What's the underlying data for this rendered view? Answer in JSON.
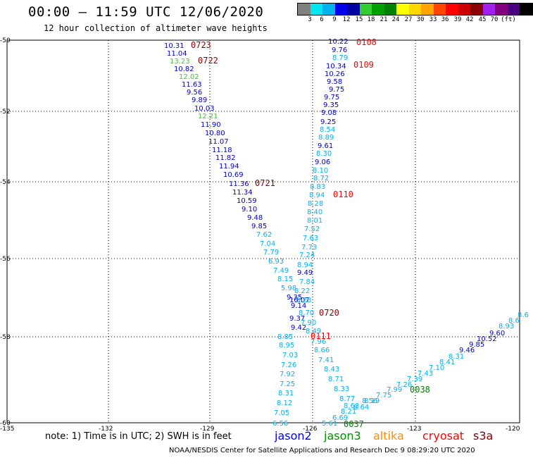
{
  "header": {
    "title": "00:00 – 11:59 UTC 12/06/2020",
    "subtitle": "12 hour collection of altimeter wave heights"
  },
  "colorbar": {
    "colors": [
      "#808080",
      "#00e5ee",
      "#00b2ee",
      "#0000ee",
      "#0000a0",
      "#32cd32",
      "#00a000",
      "#008000",
      "#ffff00",
      "#ffd700",
      "#ffa500",
      "#ff4500",
      "#ff0000",
      "#cd0000",
      "#8b0000",
      "#a020f0",
      "#800080",
      "#4b0082",
      "#000000"
    ],
    "labels": [
      "3",
      "6",
      "9",
      "12",
      "15",
      "18",
      "21",
      "24",
      "27",
      "30",
      "33",
      "36",
      "39",
      "42",
      "45",
      "70",
      "(ft)"
    ]
  },
  "axes": {
    "x_ticks": [
      "-135",
      "-132",
      "-129",
      "-126",
      "-123",
      "-120"
    ],
    "y_ticks": [
      "-50",
      "-52",
      "-54",
      "-56",
      "-58",
      "-60"
    ]
  },
  "track_labels": [
    "0723",
    "0722",
    "0721",
    "0720",
    "0108",
    "0109",
    "0110",
    "0111",
    "0038",
    "0037"
  ],
  "points": [
    {
      "v": "10.31",
      "c": "#0000cd"
    },
    {
      "v": "11.04",
      "c": "#0000cd"
    },
    {
      "v": "13.23",
      "c": "#32cd32"
    },
    {
      "v": "10.82",
      "c": "#0000cd"
    },
    {
      "v": "12.02",
      "c": "#32cd32"
    },
    {
      "v": "11.63",
      "c": "#0000cd"
    },
    {
      "v": "9.56",
      "c": "#0000cd"
    },
    {
      "v": "9.89",
      "c": "#0000cd"
    },
    {
      "v": "10.03",
      "c": "#0000cd"
    },
    {
      "v": "12.21",
      "c": "#32cd32"
    },
    {
      "v": "11.90",
      "c": "#0000cd"
    },
    {
      "v": "10.80",
      "c": "#0000cd"
    },
    {
      "v": "11.07",
      "c": "#0000cd"
    },
    {
      "v": "11.18",
      "c": "#0000cd"
    },
    {
      "v": "11.82",
      "c": "#0000cd"
    },
    {
      "v": "11.94",
      "c": "#0000cd"
    },
    {
      "v": "10.69",
      "c": "#0000cd"
    },
    {
      "v": "11.36",
      "c": "#0000cd"
    },
    {
      "v": "11.34",
      "c": "#0000cd"
    },
    {
      "v": "10.59",
      "c": "#0000cd"
    },
    {
      "v": "9.10",
      "c": "#0000cd"
    },
    {
      "v": "9.48",
      "c": "#0000cd"
    },
    {
      "v": "9.85",
      "c": "#0000cd"
    },
    {
      "v": "7.62",
      "c": "#00b2ee"
    },
    {
      "v": "7.04",
      "c": "#00b2ee"
    },
    {
      "v": "7.79",
      "c": "#00b2ee"
    },
    {
      "v": "6.93",
      "c": "#00b2ee"
    },
    {
      "v": "7.49",
      "c": "#00b2ee"
    },
    {
      "v": "8.15",
      "c": "#00b2ee"
    },
    {
      "v": "5.98",
      "c": "#00b2ee"
    },
    {
      "v": "9.35",
      "c": "#0000cd"
    },
    {
      "v": "10.07",
      "c": "#0000cd"
    },
    {
      "v": "9.14",
      "c": "#0000cd"
    },
    {
      "v": "9.37",
      "c": "#0000cd"
    },
    {
      "v": "9.42",
      "c": "#0000cd"
    },
    {
      "v": "8.85",
      "c": "#00b2ee"
    },
    {
      "v": "8.95",
      "c": "#00b2ee"
    },
    {
      "v": "7.03",
      "c": "#00b2ee"
    },
    {
      "v": "7.26",
      "c": "#00b2ee"
    },
    {
      "v": "7.92",
      "c": "#00b2ee"
    },
    {
      "v": "7.25",
      "c": "#00b2ee"
    },
    {
      "v": "8.31",
      "c": "#00b2ee"
    },
    {
      "v": "8.12",
      "c": "#00b2ee"
    },
    {
      "v": "7.05",
      "c": "#00b2ee"
    },
    {
      "v": "6.56",
      "c": "#00b2ee"
    },
    {
      "v": "10.22",
      "c": "#0000cd"
    },
    {
      "v": "9.76",
      "c": "#0000cd"
    },
    {
      "v": "8.79",
      "c": "#00b2ee"
    },
    {
      "v": "10.34",
      "c": "#0000cd"
    },
    {
      "v": "10.26",
      "c": "#0000cd"
    },
    {
      "v": "9.58",
      "c": "#0000cd"
    },
    {
      "v": "9.75",
      "c": "#0000cd"
    },
    {
      "v": "9.75",
      "c": "#0000cd"
    },
    {
      "v": "9.35",
      "c": "#0000cd"
    },
    {
      "v": "9.08",
      "c": "#0000cd"
    },
    {
      "v": "9.25",
      "c": "#0000cd"
    },
    {
      "v": "8.54",
      "c": "#00b2ee"
    },
    {
      "v": "8.89",
      "c": "#00b2ee"
    },
    {
      "v": "9.61",
      "c": "#0000cd"
    },
    {
      "v": "8.30",
      "c": "#00b2ee"
    },
    {
      "v": "9.06",
      "c": "#0000cd"
    },
    {
      "v": "8.10",
      "c": "#00b2ee"
    },
    {
      "v": "8.72",
      "c": "#00b2ee"
    },
    {
      "v": "8.83",
      "c": "#00b2ee"
    },
    {
      "v": "8.94",
      "c": "#00b2ee"
    },
    {
      "v": "8.28",
      "c": "#00b2ee"
    },
    {
      "v": "8.40",
      "c": "#00b2ee"
    },
    {
      "v": "8.01",
      "c": "#00b2ee"
    },
    {
      "v": "7.52",
      "c": "#00b2ee"
    },
    {
      "v": "7.63",
      "c": "#00b2ee"
    },
    {
      "v": "7.73",
      "c": "#00b2ee"
    },
    {
      "v": "7.24",
      "c": "#00b2ee"
    },
    {
      "v": "8.94",
      "c": "#00b2ee"
    },
    {
      "v": "9.49",
      "c": "#0000cd"
    },
    {
      "v": "7.84",
      "c": "#00b2ee"
    },
    {
      "v": "8.22",
      "c": "#00b2ee"
    },
    {
      "v": "8.28",
      "c": "#00b2ee"
    },
    {
      "v": "8.70",
      "c": "#00b2ee"
    },
    {
      "v": "7.90",
      "c": "#00b2ee"
    },
    {
      "v": "8.49",
      "c": "#00b2ee"
    },
    {
      "v": "7.96",
      "c": "#00b2ee"
    },
    {
      "v": "8.66",
      "c": "#00b2ee"
    },
    {
      "v": "7.41",
      "c": "#00b2ee"
    },
    {
      "v": "8.43",
      "c": "#00b2ee"
    },
    {
      "v": "8.71",
      "c": "#00b2ee"
    },
    {
      "v": "8.33",
      "c": "#00b2ee"
    },
    {
      "v": "8.77",
      "c": "#00b2ee"
    },
    {
      "v": "8.63",
      "c": "#00b2ee"
    },
    {
      "v": "8.21",
      "c": "#00b2ee"
    },
    {
      "v": "6.69",
      "c": "#00b2ee"
    },
    {
      "v": "5.61",
      "c": "#00b2ee"
    },
    {
      "v": "8.64",
      "c": "#00b2ee"
    },
    {
      "v": "8.56",
      "c": "#00b2ee"
    },
    {
      "v": "8.19",
      "c": "#00b2ee"
    },
    {
      "v": "7.75",
      "c": "#00b2ee"
    },
    {
      "v": "7.99",
      "c": "#00b2ee"
    },
    {
      "v": "7.26",
      "c": "#00b2ee"
    },
    {
      "v": "7.39",
      "c": "#00b2ee"
    },
    {
      "v": "7.43",
      "c": "#00b2ee"
    },
    {
      "v": "7.10",
      "c": "#00b2ee"
    },
    {
      "v": "8.41",
      "c": "#00b2ee"
    },
    {
      "v": "8.31",
      "c": "#00b2ee"
    },
    {
      "v": "9.46",
      "c": "#0000cd"
    },
    {
      "v": "9.85",
      "c": "#0000cd"
    },
    {
      "v": "10.52",
      "c": "#0000cd"
    },
    {
      "v": "9.60",
      "c": "#0000cd"
    },
    {
      "v": "8.93",
      "c": "#00b2ee"
    },
    {
      "v": "8.6",
      "c": "#00b2ee"
    },
    {
      "v": "8.6",
      "c": "#00b2ee"
    }
  ],
  "note": "note: 1) Time is in UTC; 2) SWH is in feet",
  "satellites": [
    {
      "name": "jason2",
      "color": "#0000ff"
    },
    {
      "name": "jason3",
      "color": "#009000"
    },
    {
      "name": "altika",
      "color": "#ff8c00"
    },
    {
      "name": "cryosat",
      "color": "#ff0000"
    },
    {
      "name": "s3a",
      "color": "#800000"
    }
  ],
  "footer": "NOAA/NESDIS Center for Satellite Applications and Research    Dec  9 08:29:20 UTC 2020"
}
